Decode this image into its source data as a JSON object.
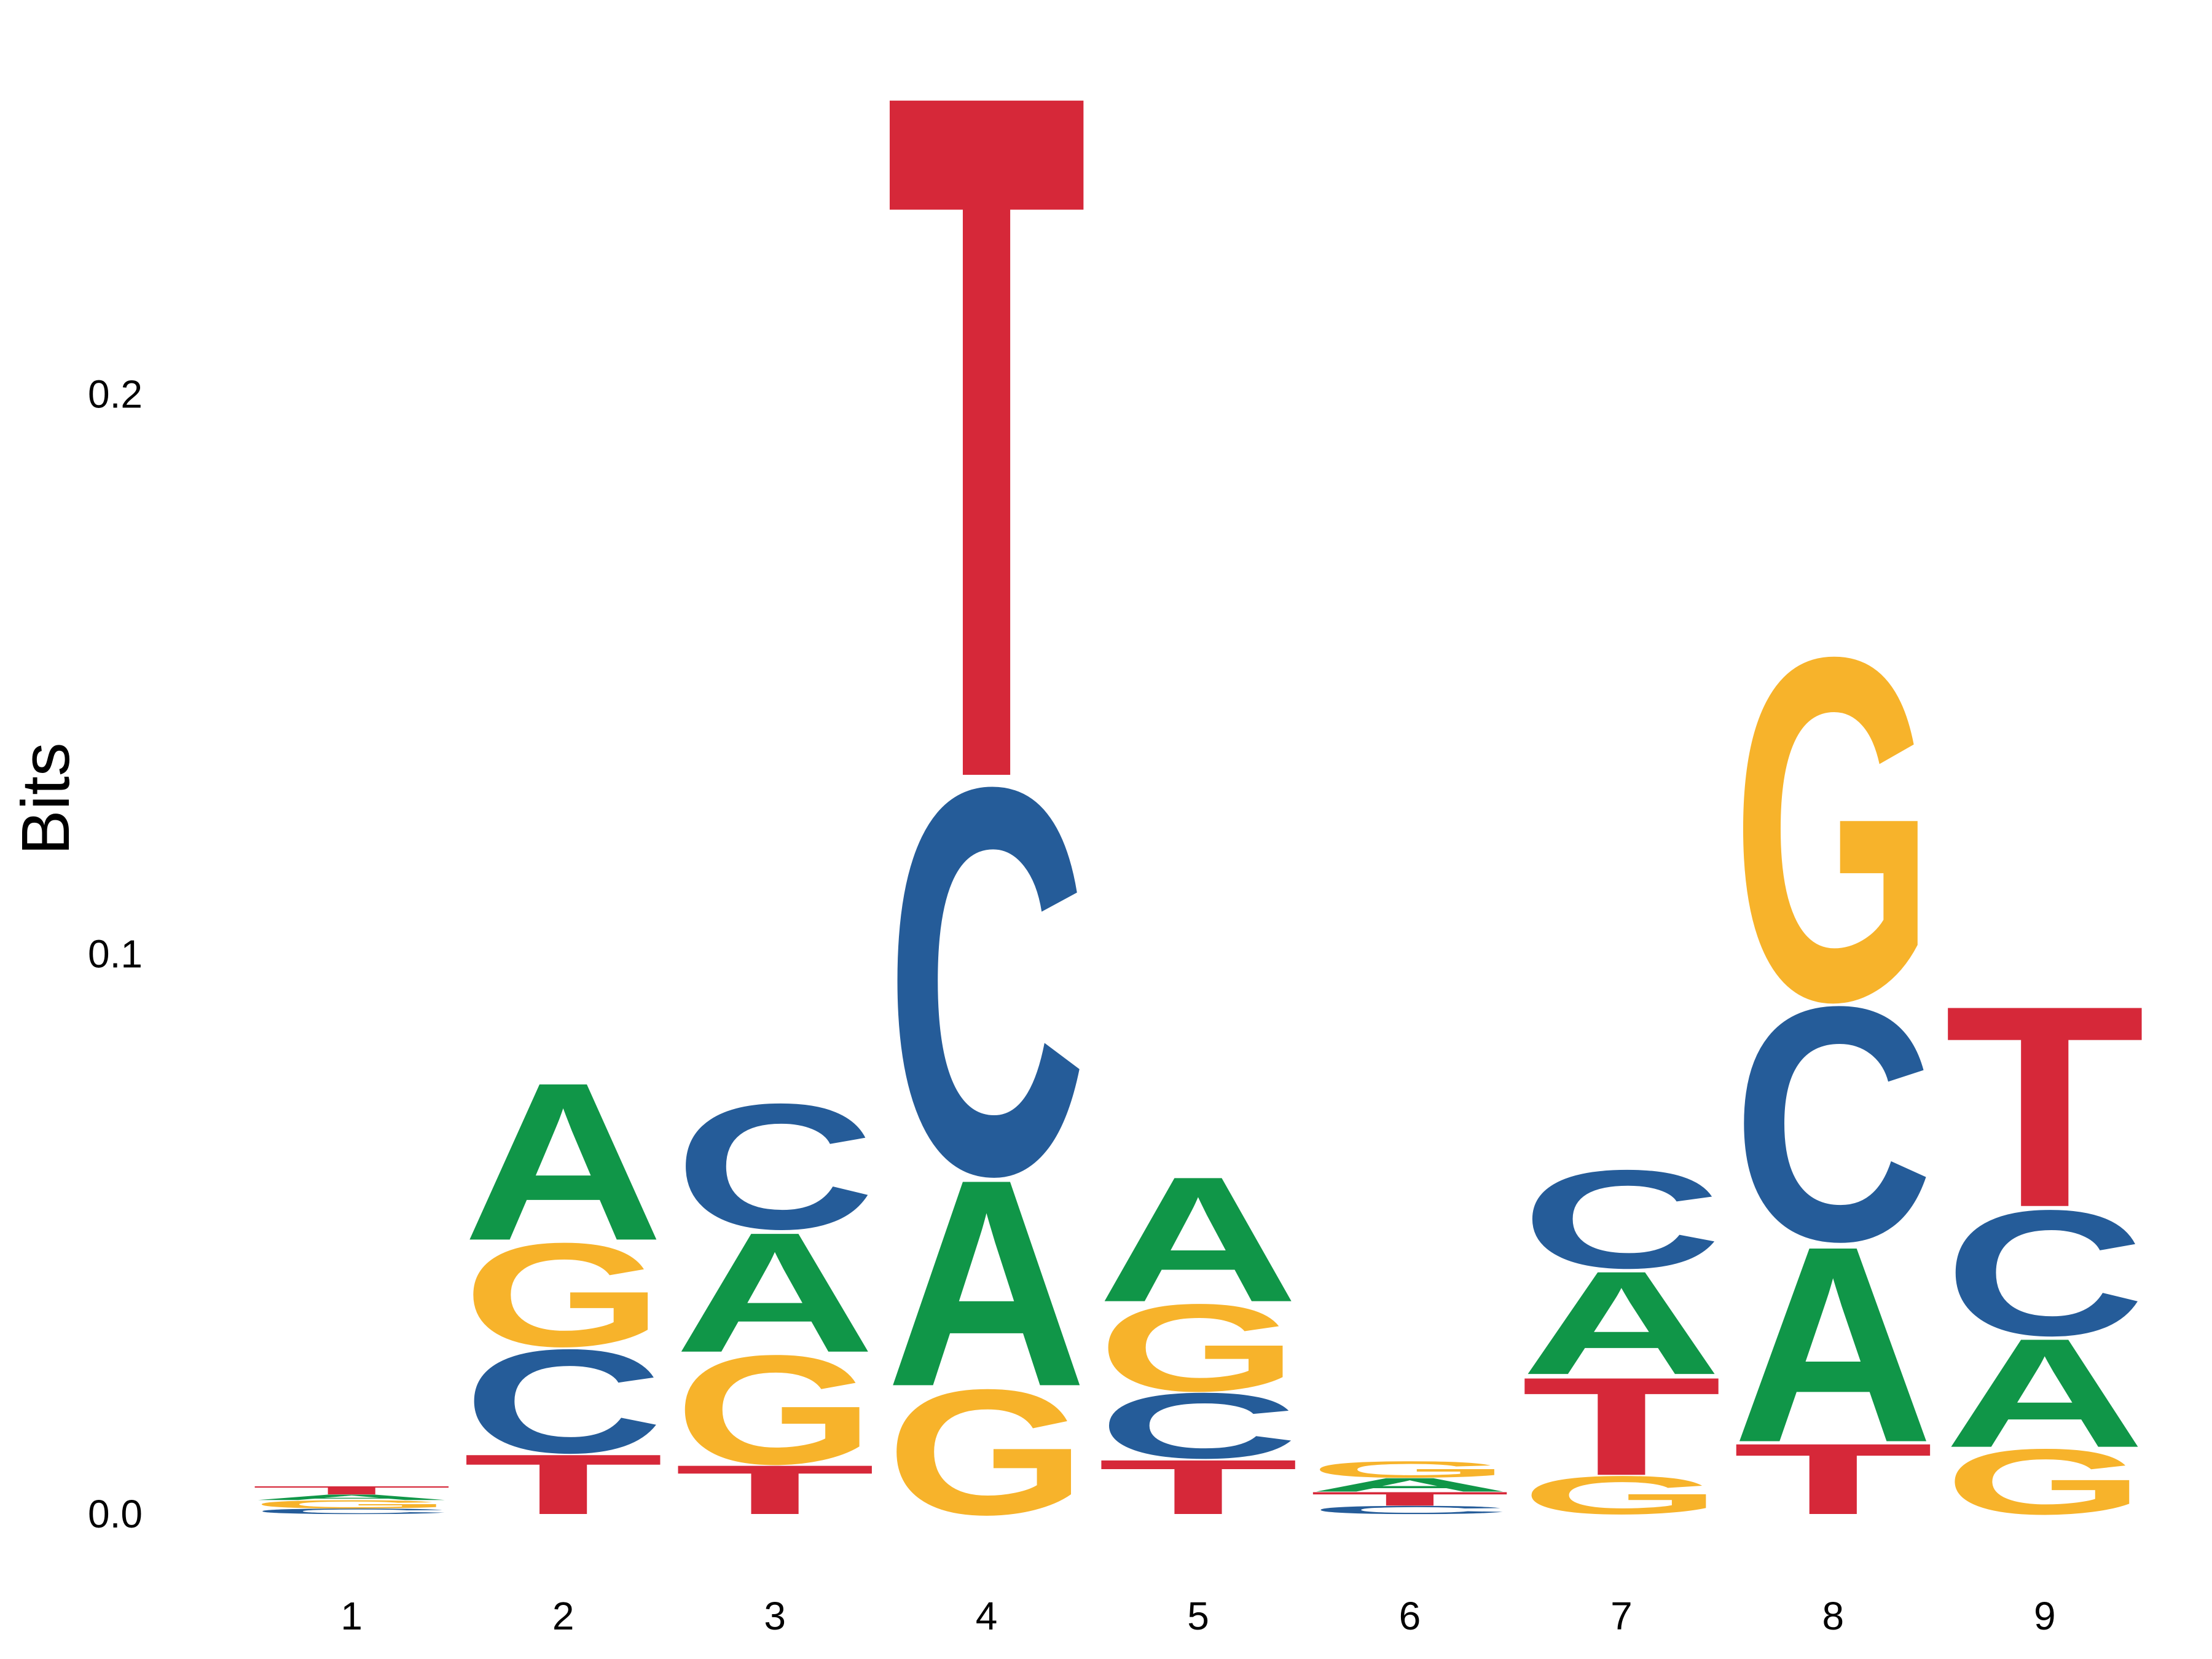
{
  "chart_data": {
    "type": "sequence-logo",
    "title": "",
    "xlabel": "",
    "ylabel": "Bits",
    "ylim": [
      0,
      0.255
    ],
    "y_ticks": [
      {
        "value": 0.0,
        "label": "0.0"
      },
      {
        "value": 0.1,
        "label": "0.1"
      },
      {
        "value": 0.2,
        "label": "0.2"
      }
    ],
    "grid": false,
    "legend": "none",
    "colors": {
      "A": "#109648",
      "C": "#255c99",
      "G": "#f7b32b",
      "T": "#d62839"
    },
    "positions": [
      {
        "label": "1",
        "stack": [
          {
            "base": "C",
            "bits": 0.001
          },
          {
            "base": "G",
            "bits": 0.0015
          },
          {
            "base": "A",
            "bits": 0.001
          },
          {
            "base": "T",
            "bits": 0.0015
          }
        ]
      },
      {
        "label": "2",
        "stack": [
          {
            "base": "T",
            "bits": 0.011
          },
          {
            "base": "C",
            "bits": 0.019
          },
          {
            "base": "G",
            "bits": 0.019
          },
          {
            "base": "A",
            "bits": 0.029
          }
        ]
      },
      {
        "label": "3",
        "stack": [
          {
            "base": "T",
            "bits": 0.009
          },
          {
            "base": "G",
            "bits": 0.02
          },
          {
            "base": "A",
            "bits": 0.022
          },
          {
            "base": "C",
            "bits": 0.023
          }
        ]
      },
      {
        "label": "4",
        "stack": [
          {
            "base": "G",
            "bits": 0.023
          },
          {
            "base": "A",
            "bits": 0.038
          },
          {
            "base": "C",
            "bits": 0.071
          },
          {
            "base": "T",
            "bits": 0.126
          }
        ]
      },
      {
        "label": "5",
        "stack": [
          {
            "base": "T",
            "bits": 0.01
          },
          {
            "base": "C",
            "bits": 0.012
          },
          {
            "base": "G",
            "bits": 0.016
          },
          {
            "base": "A",
            "bits": 0.023
          }
        ]
      },
      {
        "label": "6",
        "stack": [
          {
            "base": "C",
            "bits": 0.0015
          },
          {
            "base": "T",
            "bits": 0.0025
          },
          {
            "base": "A",
            "bits": 0.0025
          },
          {
            "base": "G",
            "bits": 0.003
          }
        ]
      },
      {
        "label": "7",
        "stack": [
          {
            "base": "G",
            "bits": 0.007
          },
          {
            "base": "T",
            "bits": 0.018
          },
          {
            "base": "A",
            "bits": 0.019
          },
          {
            "base": "C",
            "bits": 0.018
          }
        ]
      },
      {
        "label": "8",
        "stack": [
          {
            "base": "T",
            "bits": 0.013
          },
          {
            "base": "A",
            "bits": 0.036
          },
          {
            "base": "C",
            "bits": 0.043
          },
          {
            "base": "G",
            "bits": 0.063
          }
        ]
      },
      {
        "label": "9",
        "stack": [
          {
            "base": "G",
            "bits": 0.012
          },
          {
            "base": "A",
            "bits": 0.02
          },
          {
            "base": "C",
            "bits": 0.023
          },
          {
            "base": "T",
            "bits": 0.037
          }
        ]
      }
    ]
  }
}
